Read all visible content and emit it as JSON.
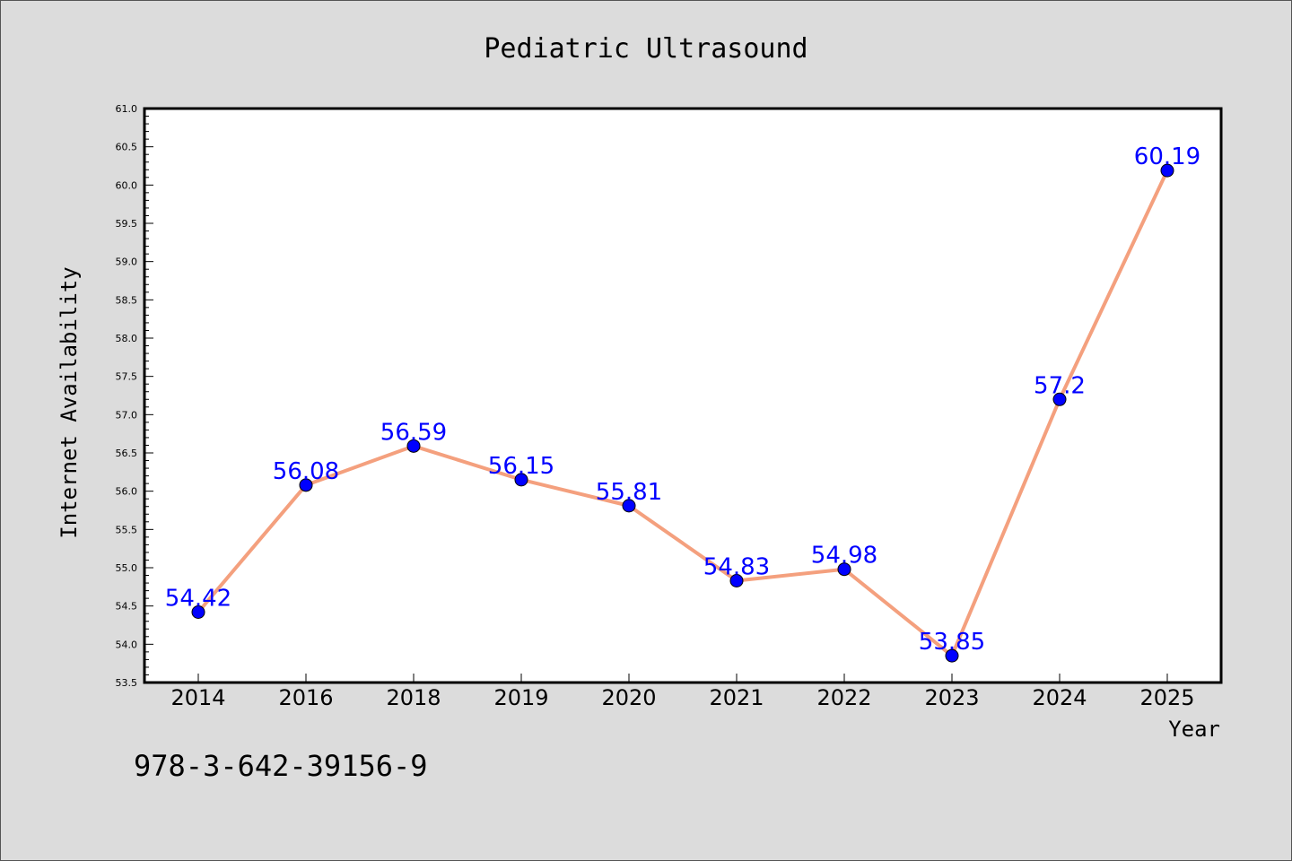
{
  "chart_data": {
    "type": "line",
    "title": "Pediatric Ultrasound",
    "xlabel": "Year",
    "ylabel": "Internet Availability",
    "categories": [
      "2014",
      "2016",
      "2018",
      "2019",
      "2020",
      "2021",
      "2022",
      "2023",
      "2024",
      "2025"
    ],
    "values": [
      54.42,
      56.08,
      56.59,
      56.15,
      55.81,
      54.83,
      54.98,
      53.85,
      57.2,
      60.19
    ],
    "data_labels": [
      "54.42",
      "56.08",
      "56.59",
      "56.15",
      "55.81",
      "54.83",
      "54.98",
      "53.85",
      "57.2",
      "60.19"
    ],
    "ylim": [
      53.5,
      61.0
    ],
    "yticks": [
      "53.5",
      "54.0",
      "54.5",
      "55.0",
      "55.5",
      "56.0",
      "56.5",
      "57.0",
      "57.5",
      "58.0",
      "58.5",
      "59.0",
      "59.5",
      "60.0",
      "60.5",
      "61.0"
    ],
    "grid": false,
    "colors": {
      "line": "#f4a07e",
      "marker": "#0000ff",
      "label": "#0000ff",
      "background": "#dcdcdc",
      "plot_area": "#ffffff"
    }
  },
  "annotation": "978-3-642-39156-9"
}
